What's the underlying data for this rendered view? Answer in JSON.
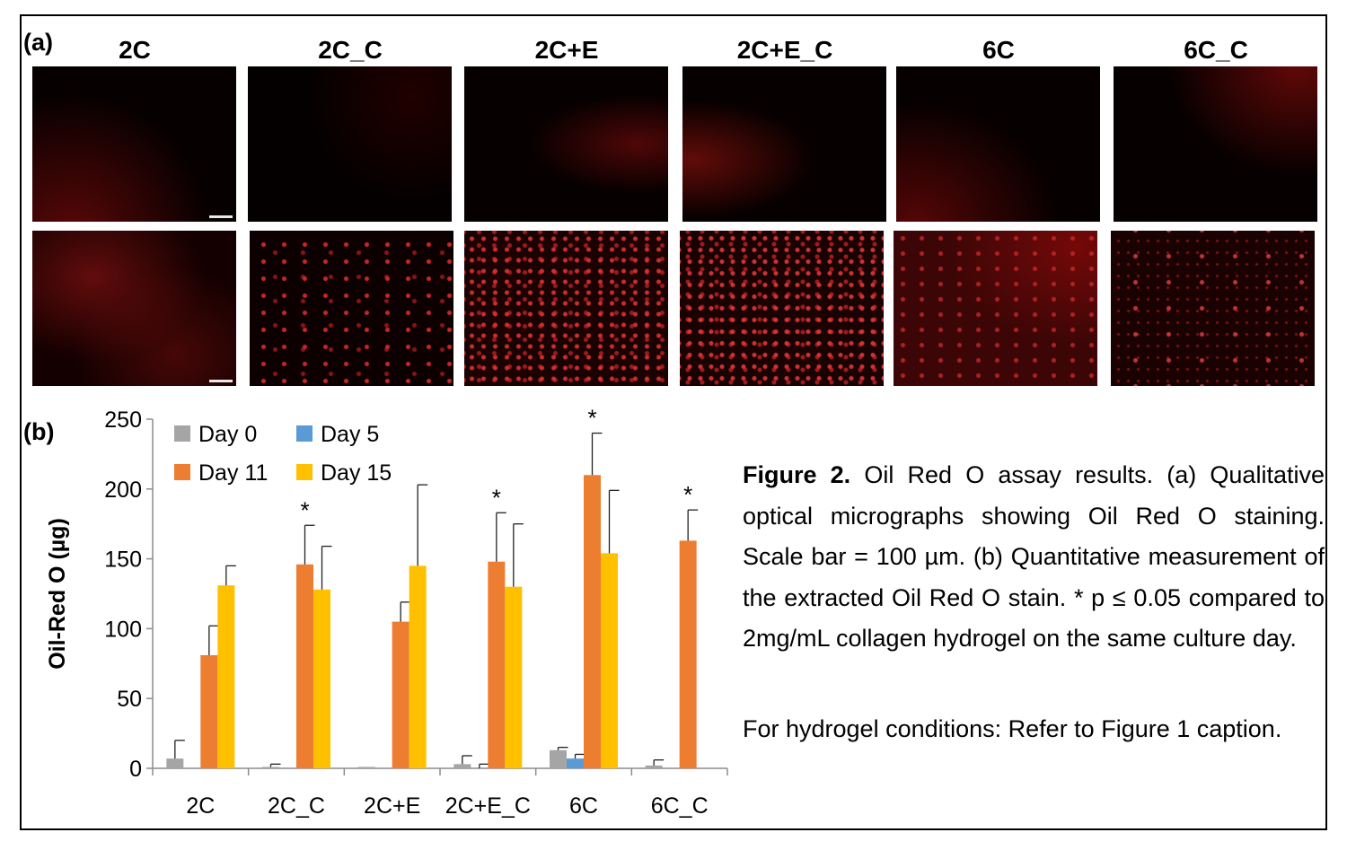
{
  "panels": {
    "a": "(a)",
    "b": "(b)"
  },
  "micrographs": {
    "columns": [
      "2C",
      "2C_C",
      "2C+E",
      "2C+E_C",
      "6C",
      "6C_C"
    ]
  },
  "chart_data": {
    "type": "bar",
    "categories": [
      "2C",
      "2C_C",
      "2C+E",
      "2C+E_C",
      "6C",
      "6C_C"
    ],
    "ylabel": "Oil-Red O (µg)",
    "ylim": [
      0,
      250
    ],
    "yticks": [
      "0",
      "50",
      "100",
      "150",
      "200",
      "250"
    ],
    "legend_position": "top-left",
    "series": [
      {
        "name": "Day 0",
        "color": "#a5a5a5",
        "values": [
          7,
          1,
          1,
          3,
          13,
          2
        ],
        "errors": [
          13,
          2,
          0,
          6,
          2,
          4
        ]
      },
      {
        "name": "Day 5",
        "color": "#5b9bd5",
        "values": [
          0,
          0,
          0,
          0,
          7,
          0
        ],
        "errors": [
          0,
          0,
          0,
          3,
          3,
          0
        ]
      },
      {
        "name": "Day 11",
        "color": "#ed7d31",
        "values": [
          81,
          146,
          105,
          148,
          210,
          163
        ],
        "errors": [
          21,
          28,
          14,
          35,
          30,
          22
        ]
      },
      {
        "name": "Day 15",
        "color": "#ffc000",
        "values": [
          131,
          128,
          145,
          130,
          154,
          0
        ],
        "errors": [
          14,
          31,
          58,
          45,
          45,
          0
        ]
      }
    ],
    "significance": [
      {
        "category": "2C_C",
        "series": "Day 11",
        "mark": "*"
      },
      {
        "category": "2C+E_C",
        "series": "Day 11",
        "mark": "*"
      },
      {
        "category": "6C",
        "series": "Day 11",
        "mark": "*"
      },
      {
        "category": "6C_C",
        "series": "Day 11",
        "mark": "*"
      }
    ]
  },
  "caption": {
    "fig_label": "Figure 2.",
    "text": " Oil Red O assay results. (a) Qualitative optical micrographs showing Oil Red O staining. Scale bar = 100 µm. (b) Quantitative measurement of the extracted Oil Red O stain. * p ≤ 0.05 compared to 2mg/mL collagen hydrogel on the same culture day.",
    "note": "For hydrogel conditions: Refer to Figure 1 caption."
  }
}
